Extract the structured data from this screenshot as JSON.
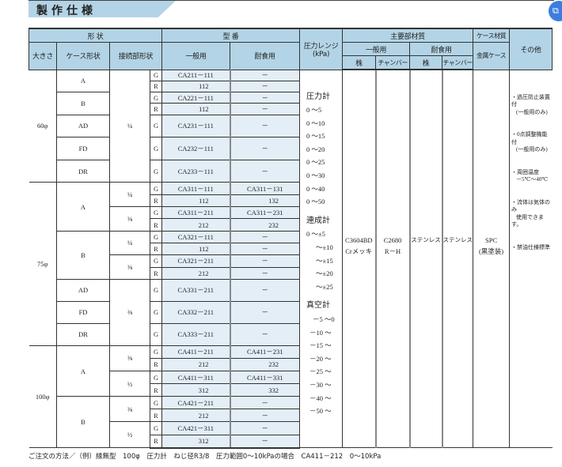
{
  "title": "製作仕様",
  "fab_icon": "copy-icon",
  "colors": {
    "header_bg": "#b3d4e6",
    "model_bg": "#e3eef6",
    "fab": "#3d7de0"
  },
  "header": {
    "shape": "形 状",
    "model": "型 番",
    "pressure_range": "圧力レンジ",
    "pressure_unit": "(kPa)",
    "materials": "主要部材質",
    "case_material": "ケース材質",
    "other": "その他",
    "size": "大きさ",
    "case_shape": "ケース形状",
    "connection": "接続部形状",
    "general": "一般用",
    "corrosion": "耐食用",
    "mat_general": "一般用",
    "mat_corrosion": "耐食用",
    "metal_case": "金属ケース",
    "stem1": "株",
    "chamber1": "チャンバー",
    "stem2": "株",
    "chamber2": "チャンバー"
  },
  "rows": [
    {
      "size": "60φ",
      "shape": "A",
      "conn": "¼",
      "thread": "G",
      "general": "CA211－111",
      "corrosion": "－"
    },
    {
      "thread": "R",
      "general": "112",
      "corrosion": "－"
    },
    {
      "shape": "B",
      "thread": "G",
      "general": "CA221－111",
      "corrosion": "－"
    },
    {
      "thread": "R",
      "general": "112",
      "corrosion": "－"
    },
    {
      "shape": "AD",
      "thread": "G",
      "general": "CA231－111",
      "corrosion": "－"
    },
    {
      "shape": "FD",
      "thread": "G",
      "general": "CA232－111",
      "corrosion": "－"
    },
    {
      "shape": "DR",
      "thread": "G",
      "general": "CA233－111",
      "corrosion": "－"
    },
    {
      "size": "75φ",
      "shape": "A",
      "conn": "¼",
      "thread": "G",
      "general": "CA311－111",
      "corrosion": "CA311－131"
    },
    {
      "thread": "R",
      "general": "112",
      "corrosion": "132"
    },
    {
      "conn": "⅜",
      "thread": "G",
      "general": "CA311－211",
      "corrosion": "CA311－231"
    },
    {
      "thread": "R",
      "general": "212",
      "corrosion": "232"
    },
    {
      "shape": "B",
      "conn": "¼",
      "thread": "G",
      "general": "CA321－111",
      "corrosion": "－"
    },
    {
      "thread": "R",
      "general": "112",
      "corrosion": "－"
    },
    {
      "conn": "⅜",
      "thread": "G",
      "general": "CA321－211",
      "corrosion": "－"
    },
    {
      "thread": "R",
      "general": "212",
      "corrosion": "－"
    },
    {
      "shape": "AD",
      "conn": "⅜",
      "thread": "G",
      "general": "CA331－211",
      "corrosion": "－"
    },
    {
      "shape": "FD",
      "thread": "G",
      "general": "CA332－211",
      "corrosion": "－"
    },
    {
      "shape": "DR",
      "thread": "G",
      "general": "CA333－211",
      "corrosion": "－"
    },
    {
      "size": "100φ",
      "shape": "A",
      "conn": "⅜",
      "thread": "G",
      "general": "CA411－211",
      "corrosion": "CA411－231"
    },
    {
      "thread": "R",
      "general": "212",
      "corrosion": "232"
    },
    {
      "conn": "½",
      "thread": "G",
      "general": "CA411－311",
      "corrosion": "CA411－331"
    },
    {
      "thread": "R",
      "general": "312",
      "corrosion": "332"
    },
    {
      "shape": "B",
      "conn": "⅜",
      "thread": "G",
      "general": "CA421－211",
      "corrosion": "－"
    },
    {
      "thread": "R",
      "general": "212",
      "corrosion": "－"
    },
    {
      "conn": "½",
      "thread": "G",
      "general": "CA421－311",
      "corrosion": "－"
    },
    {
      "thread": "R",
      "general": "312",
      "corrosion": "－"
    }
  ],
  "pressure": {
    "gauge_label": "圧力計",
    "gauge": [
      "0 ～5",
      "0 ～10",
      "0 ～15",
      "0 ～20",
      "0 ～25",
      "0 ～30",
      "0 ～40",
      "0 ～50"
    ],
    "compound_label": "連成計",
    "compound": [
      "0 ～±5",
      "～±10",
      "～±15",
      "～±20",
      "～±25"
    ],
    "vacuum_label": "真空計",
    "vacuum": [
      "－5 ～0",
      "－10 ～",
      "－15 ～",
      "－20 ～",
      "－25 ～",
      "－30 ～",
      "－40 ～",
      "－50 ～"
    ]
  },
  "materials": {
    "general_stem": [
      "C3604BD",
      "Crメッキ"
    ],
    "general_chamber": [
      "C2680",
      "R－H"
    ],
    "corrosion_stem": "ステンレス",
    "corrosion_chamber": "ステンレス",
    "metal_case": [
      "SPC",
      "(黒塗装)"
    ]
  },
  "notes": [
    [
      "・過圧防止装置付",
      "(一般用のみ)"
    ],
    [
      "・0点調整機能付",
      "(一般用のみ)"
    ],
    [
      "・周囲温度",
      "－5℃～40℃"
    ],
    [
      "・流体は気体のみ",
      "使用できます。"
    ],
    [
      "・禁油仕様標準"
    ]
  ],
  "footer": "ご注文の方法／（例）縁無型　100φ　圧力計　ねじ径R3/8　圧力範囲0～10kPaの場合　CA411－212　0～10kPa"
}
